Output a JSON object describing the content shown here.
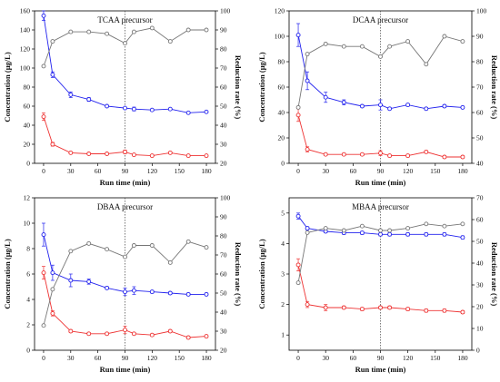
{
  "chart_data": [
    {
      "type": "line",
      "title": "TCAA precursor",
      "xlabel": "Run time (min)",
      "ylabel": "Concentration (μg/L)",
      "y2label": "Reduction rate (%)",
      "xlim": [
        -10,
        190
      ],
      "xticks": [
        "0",
        "30",
        "60",
        "90",
        "120",
        "150",
        "180"
      ],
      "ylim": [
        0,
        160
      ],
      "yticks": [
        "0",
        "20",
        "40",
        "60",
        "80",
        "100",
        "120",
        "140",
        "160"
      ],
      "y2lim": [
        20,
        100
      ],
      "y2ticks": [
        "20",
        "30",
        "40",
        "50",
        "60",
        "70",
        "80",
        "90",
        "100"
      ],
      "vline_x": 90,
      "series": [
        {
          "axis": "left",
          "color": "#2222ee",
          "marker": "circle",
          "x": [
            0,
            10,
            30,
            50,
            70,
            90,
            100,
            120,
            140,
            160,
            180
          ],
          "y": [
            155,
            93,
            72,
            67,
            60,
            58,
            57,
            56,
            57,
            53,
            54
          ],
          "err": [
            5,
            3,
            3,
            2,
            1,
            1,
            2,
            1,
            1,
            1,
            1
          ]
        },
        {
          "axis": "left",
          "color": "#ee3333",
          "marker": "circle",
          "x": [
            0,
            10,
            30,
            50,
            70,
            90,
            100,
            120,
            140,
            160,
            180
          ],
          "y": [
            49,
            20,
            11,
            10,
            10,
            12,
            9,
            8,
            11,
            8,
            8
          ],
          "err": [
            4,
            2,
            1,
            1,
            1,
            2,
            1,
            1,
            1,
            1,
            1
          ]
        },
        {
          "axis": "right",
          "color": "#777777",
          "marker": "circle",
          "x": [
            0,
            10,
            30,
            50,
            70,
            90,
            100,
            120,
            140,
            160,
            180
          ],
          "y": [
            71,
            84,
            89,
            89,
            88,
            83,
            89,
            91,
            84,
            90,
            90
          ],
          "err": []
        }
      ]
    },
    {
      "type": "line",
      "title": "DCAA precursor",
      "xlabel": "Run time (min)",
      "ylabel": "Concentration (μg/L)",
      "y2label": "Reduction rate (%)",
      "xlim": [
        -10,
        190
      ],
      "xticks": [
        "0",
        "30",
        "60",
        "90",
        "120",
        "150",
        "180"
      ],
      "ylim": [
        0,
        120
      ],
      "yticks": [
        "0",
        "20",
        "40",
        "60",
        "80",
        "100",
        "120"
      ],
      "y2lim": [
        40,
        100
      ],
      "y2ticks": [
        "40",
        "50",
        "60",
        "70",
        "80",
        "90",
        "100"
      ],
      "vline_x": 90,
      "series": [
        {
          "axis": "left",
          "color": "#2222ee",
          "marker": "circle",
          "x": [
            0,
            10,
            30,
            50,
            70,
            90,
            100,
            120,
            140,
            160,
            180
          ],
          "y": [
            101,
            65,
            52,
            48,
            45,
            46,
            43,
            46,
            43,
            45,
            44
          ],
          "err": [
            9,
            7,
            4,
            2,
            1,
            4,
            1,
            1,
            1,
            1,
            1
          ]
        },
        {
          "axis": "left",
          "color": "#ee3333",
          "marker": "circle",
          "x": [
            0,
            10,
            30,
            50,
            70,
            90,
            100,
            120,
            140,
            160,
            180
          ],
          "y": [
            38,
            11,
            7,
            7,
            7,
            8,
            6,
            6,
            9,
            5,
            5
          ],
          "err": [
            5,
            2,
            1,
            1,
            1,
            2,
            1,
            1,
            1,
            1,
            1
          ]
        },
        {
          "axis": "right",
          "color": "#777777",
          "marker": "circle",
          "x": [
            0,
            10,
            30,
            50,
            70,
            90,
            100,
            120,
            140,
            160,
            180
          ],
          "y": [
            62,
            83,
            87,
            86,
            86,
            82,
            86,
            88,
            79,
            90,
            88
          ],
          "err": []
        }
      ]
    },
    {
      "type": "line",
      "title": "DBAA precursor",
      "xlabel": "Run time (min)",
      "ylabel": "Concentration (μg/L)",
      "y2label": "Reduction rate (%)",
      "xlim": [
        -10,
        190
      ],
      "xticks": [
        "0",
        "30",
        "60",
        "90",
        "120",
        "150",
        "180"
      ],
      "ylim": [
        0,
        12
      ],
      "yticks": [
        "0",
        "2",
        "4",
        "6",
        "8",
        "10",
        "12"
      ],
      "y2lim": [
        20,
        100
      ],
      "y2ticks": [
        "20",
        "30",
        "40",
        "50",
        "60",
        "70",
        "80",
        "90",
        "100"
      ],
      "vline_x": 90,
      "series": [
        {
          "axis": "left",
          "color": "#2222ee",
          "marker": "circle",
          "x": [
            0,
            10,
            30,
            50,
            70,
            90,
            100,
            120,
            140,
            160,
            180
          ],
          "y": [
            9.1,
            6.1,
            5.5,
            5.4,
            4.9,
            4.6,
            4.7,
            4.6,
            4.5,
            4.4,
            4.4
          ],
          "err": [
            0.9,
            0.6,
            0.5,
            0.2,
            0.1,
            0.3,
            0.3,
            0.1,
            0.1,
            0.1,
            0.1
          ]
        },
        {
          "axis": "left",
          "color": "#ee3333",
          "marker": "circle",
          "x": [
            0,
            10,
            30,
            50,
            70,
            90,
            100,
            120,
            140,
            160,
            180
          ],
          "y": [
            6.1,
            2.9,
            1.5,
            1.3,
            1.3,
            1.6,
            1.3,
            1.2,
            1.5,
            1.0,
            1.1
          ],
          "err": [
            0.5,
            0.2,
            0.1,
            0.1,
            0.1,
            0.3,
            0.1,
            0.1,
            0.1,
            0.1,
            0.1
          ]
        },
        {
          "axis": "right",
          "color": "#777777",
          "marker": "circle",
          "x": [
            0,
            10,
            30,
            50,
            70,
            90,
            100,
            120,
            140,
            160,
            180
          ],
          "y": [
            33,
            52,
            72,
            76,
            73,
            69,
            75,
            75,
            66,
            77,
            74
          ],
          "err": []
        }
      ]
    },
    {
      "type": "line",
      "title": "MBAA precursor",
      "xlabel": "Run time (min)",
      "ylabel": "Concentration (μg/L)",
      "y2label": "Reduction rate (%)",
      "xlim": [
        -10,
        190
      ],
      "xticks": [
        "0",
        "30",
        "60",
        "90",
        "120",
        "150",
        "180"
      ],
      "ylim": [
        0.5,
        5.5
      ],
      "yticks": [
        "1",
        "2",
        "3",
        "4",
        "5"
      ],
      "y2lim": [
        0,
        70
      ],
      "y2ticks": [
        "0",
        "10",
        "20",
        "30",
        "40",
        "50",
        "60",
        "70"
      ],
      "vline_x": 90,
      "series": [
        {
          "axis": "left",
          "color": "#2222ee",
          "marker": "circle",
          "x": [
            0,
            10,
            30,
            50,
            70,
            90,
            100,
            120,
            140,
            160,
            180
          ],
          "y": [
            4.9,
            4.5,
            4.4,
            4.35,
            4.35,
            4.3,
            4.3,
            4.3,
            4.3,
            4.3,
            4.2
          ],
          "err": [
            0.1,
            0.05,
            0.05,
            0.05,
            0.05,
            0.05,
            0.05,
            0.05,
            0.05,
            0.05,
            0.05
          ]
        },
        {
          "axis": "left",
          "color": "#ee3333",
          "marker": "circle",
          "x": [
            0,
            10,
            30,
            50,
            70,
            90,
            100,
            120,
            140,
            160,
            180
          ],
          "y": [
            3.3,
            2.0,
            1.9,
            1.9,
            1.85,
            1.9,
            1.9,
            1.85,
            1.8,
            1.8,
            1.75
          ],
          "err": [
            0.2,
            0.1,
            0.1,
            0.05,
            0.05,
            0.05,
            0.05,
            0.05,
            0.05,
            0.05,
            0.05
          ]
        },
        {
          "axis": "right",
          "color": "#777777",
          "marker": "circle",
          "x": [
            0,
            10,
            30,
            50,
            70,
            90,
            100,
            120,
            140,
            160,
            180
          ],
          "y": [
            31,
            54,
            56,
            55,
            57,
            55,
            55,
            56,
            58,
            57,
            58
          ],
          "err": []
        }
      ]
    }
  ]
}
